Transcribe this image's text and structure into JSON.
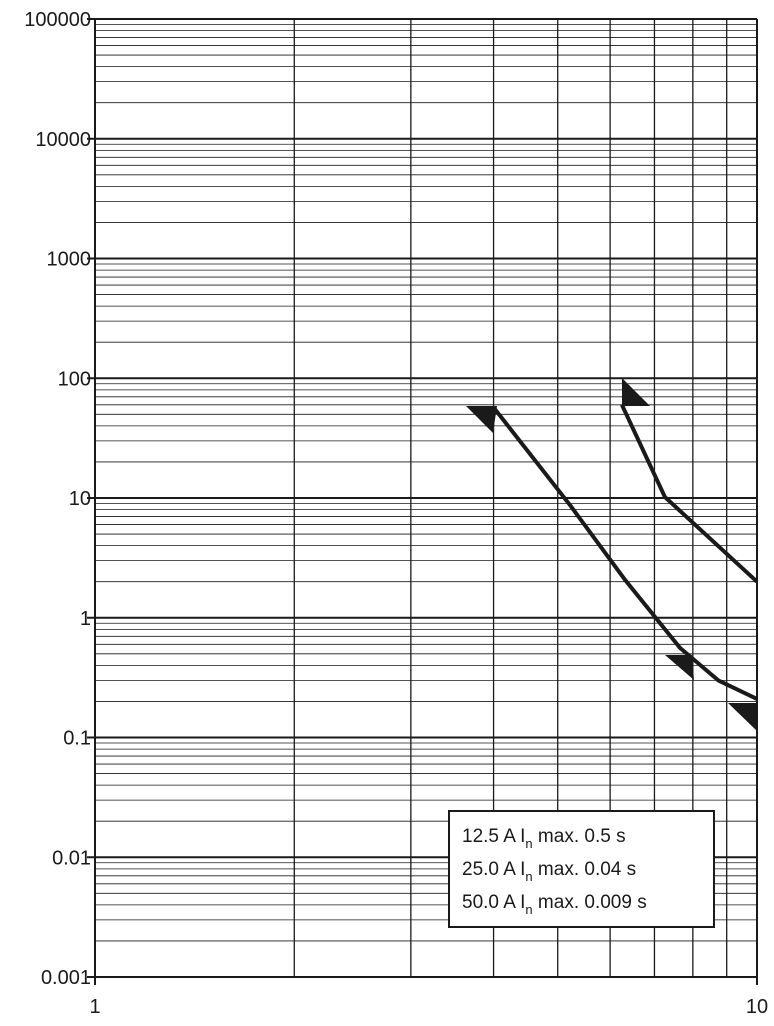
{
  "chart_data": {
    "type": "line",
    "x_log": true,
    "y_log": true,
    "xlim": [
      1,
      10
    ],
    "ylim": [
      0.001,
      100000
    ],
    "xticks": [
      1,
      10
    ],
    "yticks": [
      0.001,
      0.01,
      0.1,
      1,
      10,
      100,
      1000,
      10000,
      100000
    ],
    "minor_multipliers": [
      2,
      3,
      4,
      5,
      6,
      7,
      8,
      9
    ],
    "grid": true,
    "series": [
      {
        "color": "#1a1a1a",
        "x": [
          4.0,
          5.22,
          6.32,
          7.65,
          8.74,
          10
        ],
        "values": [
          57,
          8.7,
          2.07,
          0.56,
          0.3,
          0.21
        ]
      },
      {
        "color": "#1a1a1a",
        "x": [
          6.25,
          7.26,
          10
        ],
        "values": [
          60,
          10.2,
          2.0
        ]
      }
    ],
    "annotation": [
      {
        "before": "12.5 A I",
        "sub": "n",
        "after": " max. 0.5 s"
      },
      {
        "before": "25.0 A I",
        "sub": "n",
        "after": " max. 0.04 s"
      },
      {
        "before": "50.0 A I",
        "sub": "n",
        "after": " max. 0.009 s"
      }
    ]
  }
}
